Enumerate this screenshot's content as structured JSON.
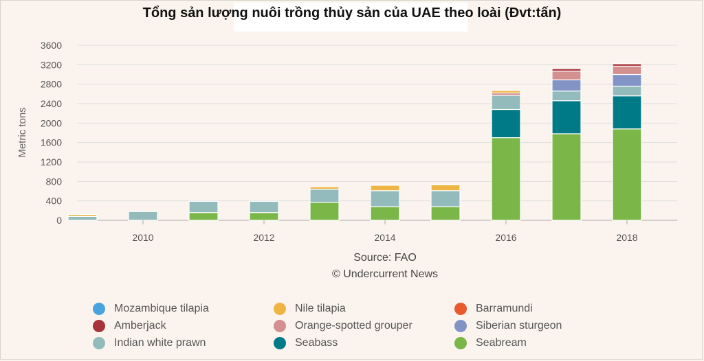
{
  "chart_data": {
    "type": "bar",
    "stacked": true,
    "title": "Tổng sản lượng nuôi trồng thủy sản của UAE theo loài (Đvt:tấn)",
    "ylabel": "Metric tons",
    "ylim": [
      0,
      3600
    ],
    "yticks": [
      0,
      400,
      800,
      1200,
      1600,
      2000,
      2400,
      2800,
      3200,
      3600
    ],
    "xticks": [
      "2010",
      "2012",
      "2014",
      "2016",
      "2018"
    ],
    "grid": true,
    "legend_position": "bottom",
    "source": [
      "Source: FAO",
      "© Undercurrent News"
    ],
    "categories": [
      "2009",
      "2010",
      "2011",
      "2012",
      "2013",
      "2014",
      "2015",
      "2016",
      "2017",
      "2018"
    ],
    "series": [
      {
        "name": "Seabream",
        "color": "#7ab648",
        "values": [
          0,
          0,
          160,
          160,
          370,
          280,
          280,
          1700,
          1780,
          1880
        ]
      },
      {
        "name": "Seabass",
        "color": "#007a87",
        "values": [
          0,
          0,
          0,
          0,
          0,
          0,
          0,
          580,
          680,
          680
        ]
      },
      {
        "name": "Indian white prawn",
        "color": "#94bbbb",
        "values": [
          80,
          180,
          230,
          230,
          270,
          330,
          330,
          290,
          200,
          200
        ]
      },
      {
        "name": "Siberian sturgeon",
        "color": "#8294c6",
        "values": [
          0,
          0,
          0,
          0,
          0,
          0,
          0,
          0,
          230,
          240
        ]
      },
      {
        "name": "Orange-spotted grouper",
        "color": "#d48f8f",
        "values": [
          0,
          0,
          0,
          0,
          0,
          0,
          0,
          50,
          180,
          170
        ]
      },
      {
        "name": "Amberjack",
        "color": "#a8333b",
        "values": [
          0,
          0,
          0,
          0,
          0,
          0,
          0,
          0,
          50,
          50
        ]
      },
      {
        "name": "Nile tilapia",
        "color": "#eeb545",
        "values": [
          40,
          0,
          0,
          0,
          50,
          110,
          120,
          50,
          0,
          0
        ]
      },
      {
        "name": "Barramundi",
        "color": "#e85a2e",
        "values": [
          0,
          0,
          0,
          0,
          0,
          0,
          0,
          0,
          0,
          0
        ]
      },
      {
        "name": "Mozambique tilapia",
        "color": "#4aa3df",
        "values": [
          0,
          0,
          0,
          0,
          0,
          0,
          0,
          0,
          0,
          0
        ]
      }
    ],
    "legend_order": [
      "Mozambique tilapia",
      "Nile tilapia",
      "Barramundi",
      "Amberjack",
      "Orange-spotted grouper",
      "Siberian sturgeon",
      "Indian white prawn",
      "Seabass",
      "Seabream"
    ]
  }
}
